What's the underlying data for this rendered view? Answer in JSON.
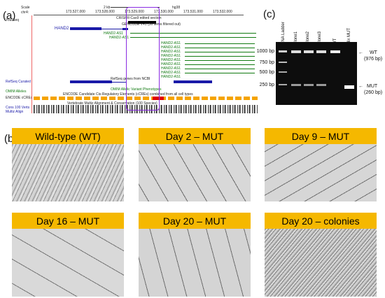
{
  "panels": {
    "a": "(a)",
    "b": "(b)",
    "c": "(c)"
  },
  "genome_browser": {
    "scale_label": "Scale",
    "scale_value": "2 kb",
    "assembly": "hg38",
    "chrom": "chr4:",
    "positions": [
      "173,527,000",
      "173,528,000",
      "173,529,000",
      "173,530,000",
      "173,531,000",
      "173,532,000"
    ],
    "tracks": {
      "yourseq": "YourSeq",
      "crispr": "CRISPR-Cas9 edited section",
      "gencode": "GENCODE V41 (56 items filtered out)",
      "refseq": "RefSeq Curated",
      "refseq_genes": "RefSeq genes from NCBI",
      "omim": "OMIM Alleles",
      "omim_pheno": "OMIM Allelic Variant Phenotypes",
      "encode": "ENCODE cCREs",
      "encode_desc": "ENCODE Candidate Cis-Regulatory Elements (cCREs) combined from all cell types",
      "cons": "Cons 100 Verts",
      "multiz": "Multiz Align",
      "cons_desc": "Vertebrate Multiz Alignment & Conservation (100 Species)"
    },
    "genes": {
      "hand2": "HAND2",
      "as1": "HAND2-AS1",
      "as1_list": [
        "HAND2-AS1",
        "HAND2-AS1",
        "HAND2-AS1",
        "HAND2-AS1",
        "HAND2-AS1",
        "HAND2-AS1",
        "HAND2-AS1",
        "HAND2-AS1",
        "HAND2-AS1"
      ]
    }
  },
  "gel": {
    "lanes": [
      "DNA Ladder",
      "Clone1",
      "Clone2",
      "Clone3",
      "WT",
      "Mix MUT"
    ],
    "ladder_marks": [
      "1000 bp",
      "750 bp",
      "500 bp",
      "250 bp"
    ],
    "wt_label": "WT",
    "wt_size": "(976 bp)",
    "mut_label": "MUT",
    "mut_size": "(260 bp)"
  },
  "micrographs": [
    "Wild-type (WT)",
    "Day 2 – MUT",
    "Day 9 – MUT",
    "Day 16 – MUT",
    "Day 20 – MUT",
    "Day 20 – colonies"
  ],
  "colors": {
    "header": "#f5b800",
    "gene": "#1a1aa8",
    "as1": "#117a11",
    "highlight": "#8a2be2"
  }
}
